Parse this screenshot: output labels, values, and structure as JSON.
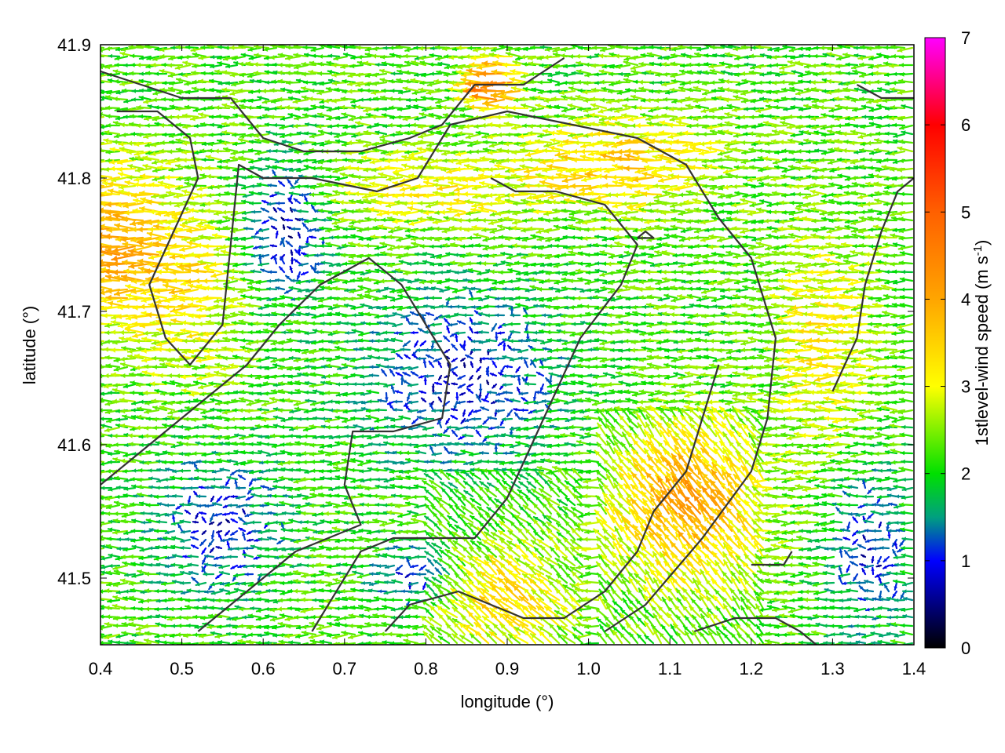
{
  "chart_data": {
    "type": "vector-field",
    "xlabel": "longitude (°)",
    "ylabel": "latitude (°)",
    "colorbar_label": "1stlevel-wind speed (m s",
    "colorbar_label_sup": "-1",
    "colorbar_label_close": ")",
    "xlim": [
      0.4,
      1.4
    ],
    "ylim": [
      41.45,
      41.9
    ],
    "xticks": [
      0.4,
      0.5,
      0.6,
      0.7,
      0.8,
      0.9,
      1.0,
      1.1,
      1.2,
      1.3,
      1.4
    ],
    "xtick_labels": [
      "0.4",
      "0.5",
      "0.6",
      "0.7",
      "0.8",
      "0.9",
      "1.0",
      "1.1",
      "1.2",
      "1.3",
      "1.4"
    ],
    "yticks": [
      41.5,
      41.6,
      41.7,
      41.8,
      41.9
    ],
    "ytick_labels": [
      "41.5",
      "41.6",
      "41.7",
      "41.8",
      "41.9"
    ],
    "colorbar_range": [
      0,
      7
    ],
    "colorbar_ticks": [
      0,
      1,
      2,
      3,
      4,
      5,
      6,
      7
    ],
    "colorbar_tick_labels": [
      "0",
      "1",
      "2",
      "3",
      "4",
      "5",
      "6",
      "7"
    ],
    "colormap": [
      {
        "value": 0,
        "color": "#000000"
      },
      {
        "value": 1,
        "color": "#0000ff"
      },
      {
        "value": 1.5,
        "color": "#00a07f"
      },
      {
        "value": 2,
        "color": "#00e000"
      },
      {
        "value": 3,
        "color": "#ffff00"
      },
      {
        "value": 4,
        "color": "#ffa500"
      },
      {
        "value": 5,
        "color": "#ff6000"
      },
      {
        "value": 6,
        "color": "#ff0000"
      },
      {
        "value": 7,
        "color": "#ff00ff"
      }
    ],
    "field": {
      "grid_dx": 0.01,
      "grid_dy": 0.01,
      "dominant_direction": "westward (from east)",
      "speed_range": [
        0.1,
        5.5
      ]
    },
    "contours": [
      [
        [
          0.4,
          41.88
        ],
        [
          0.45,
          41.87
        ],
        [
          0.5,
          41.86
        ],
        [
          0.56,
          41.86
        ],
        [
          0.6,
          41.83
        ],
        [
          0.65,
          41.82
        ],
        [
          0.72,
          41.82
        ],
        [
          0.78,
          41.83
        ],
        [
          0.82,
          41.84
        ],
        [
          0.86,
          41.87
        ],
        [
          0.92,
          41.87
        ],
        [
          0.97,
          41.89
        ]
      ],
      [
        [
          0.42,
          41.85
        ],
        [
          0.47,
          41.85
        ],
        [
          0.51,
          41.83
        ],
        [
          0.52,
          41.8
        ],
        [
          0.49,
          41.76
        ],
        [
          0.46,
          41.72
        ],
        [
          0.48,
          41.68
        ],
        [
          0.51,
          41.66
        ],
        [
          0.55,
          41.69
        ],
        [
          0.56,
          41.75
        ],
        [
          0.57,
          41.81
        ],
        [
          0.6,
          41.8
        ],
        [
          0.66,
          41.8
        ],
        [
          0.74,
          41.79
        ],
        [
          0.79,
          41.8
        ],
        [
          0.83,
          41.84
        ],
        [
          0.9,
          41.85
        ],
        [
          0.98,
          41.84
        ],
        [
          1.06,
          41.83
        ],
        [
          1.12,
          41.81
        ],
        [
          1.16,
          41.77
        ],
        [
          1.2,
          41.74
        ],
        [
          1.23,
          41.68
        ],
        [
          1.22,
          41.62
        ],
        [
          1.2,
          41.58
        ],
        [
          1.14,
          41.53
        ],
        [
          1.07,
          41.48
        ],
        [
          1.02,
          41.46
        ]
      ],
      [
        [
          0.4,
          41.57
        ],
        [
          0.46,
          41.6
        ],
        [
          0.52,
          41.63
        ],
        [
          0.58,
          41.66
        ],
        [
          0.62,
          41.69
        ],
        [
          0.67,
          41.72
        ],
        [
          0.73,
          41.74
        ],
        [
          0.77,
          41.72
        ],
        [
          0.8,
          41.69
        ],
        [
          0.83,
          41.66
        ],
        [
          0.82,
          41.62
        ],
        [
          0.76,
          41.61
        ],
        [
          0.71,
          41.61
        ],
        [
          0.7,
          41.57
        ],
        [
          0.72,
          41.54
        ],
        [
          0.68,
          41.53
        ],
        [
          0.64,
          41.52
        ],
        [
          0.6,
          41.5
        ],
        [
          0.56,
          41.48
        ],
        [
          0.52,
          41.46
        ]
      ],
      [
        [
          0.66,
          41.46
        ],
        [
          0.69,
          41.49
        ],
        [
          0.72,
          41.52
        ],
        [
          0.76,
          41.53
        ],
        [
          0.82,
          41.53
        ],
        [
          0.86,
          41.53
        ],
        [
          0.9,
          41.56
        ],
        [
          0.93,
          41.6
        ],
        [
          0.96,
          41.64
        ],
        [
          0.99,
          41.68
        ],
        [
          1.04,
          41.72
        ],
        [
          1.06,
          41.75
        ],
        [
          1.02,
          41.78
        ],
        [
          0.96,
          41.79
        ],
        [
          0.91,
          41.79
        ],
        [
          0.88,
          41.8
        ]
      ],
      [
        [
          0.75,
          41.46
        ],
        [
          0.78,
          41.48
        ],
        [
          0.84,
          41.49
        ],
        [
          0.88,
          41.48
        ],
        [
          0.92,
          41.47
        ],
        [
          0.97,
          41.47
        ],
        [
          1.02,
          41.49
        ],
        [
          1.06,
          41.52
        ],
        [
          1.08,
          41.55
        ],
        [
          1.12,
          41.58
        ],
        [
          1.14,
          41.62
        ],
        [
          1.16,
          41.66
        ]
      ],
      [
        [
          1.3,
          41.64
        ],
        [
          1.33,
          41.68
        ],
        [
          1.34,
          41.72
        ],
        [
          1.36,
          41.76
        ],
        [
          1.38,
          41.79
        ],
        [
          1.4,
          41.8
        ]
      ],
      [
        [
          1.33,
          41.87
        ],
        [
          1.36,
          41.86
        ],
        [
          1.4,
          41.86
        ]
      ],
      [
        [
          1.13,
          41.46
        ],
        [
          1.18,
          41.47
        ],
        [
          1.23,
          41.47
        ],
        [
          1.26,
          41.46
        ],
        [
          1.28,
          41.45
        ]
      ],
      [
        [
          1.2,
          41.51
        ],
        [
          1.24,
          41.51
        ],
        [
          1.25,
          41.52
        ]
      ],
      [
        [
          1.06,
          41.755
        ],
        [
          1.08,
          41.755
        ],
        [
          1.07,
          41.76
        ],
        [
          1.06,
          41.755
        ]
      ]
    ]
  }
}
